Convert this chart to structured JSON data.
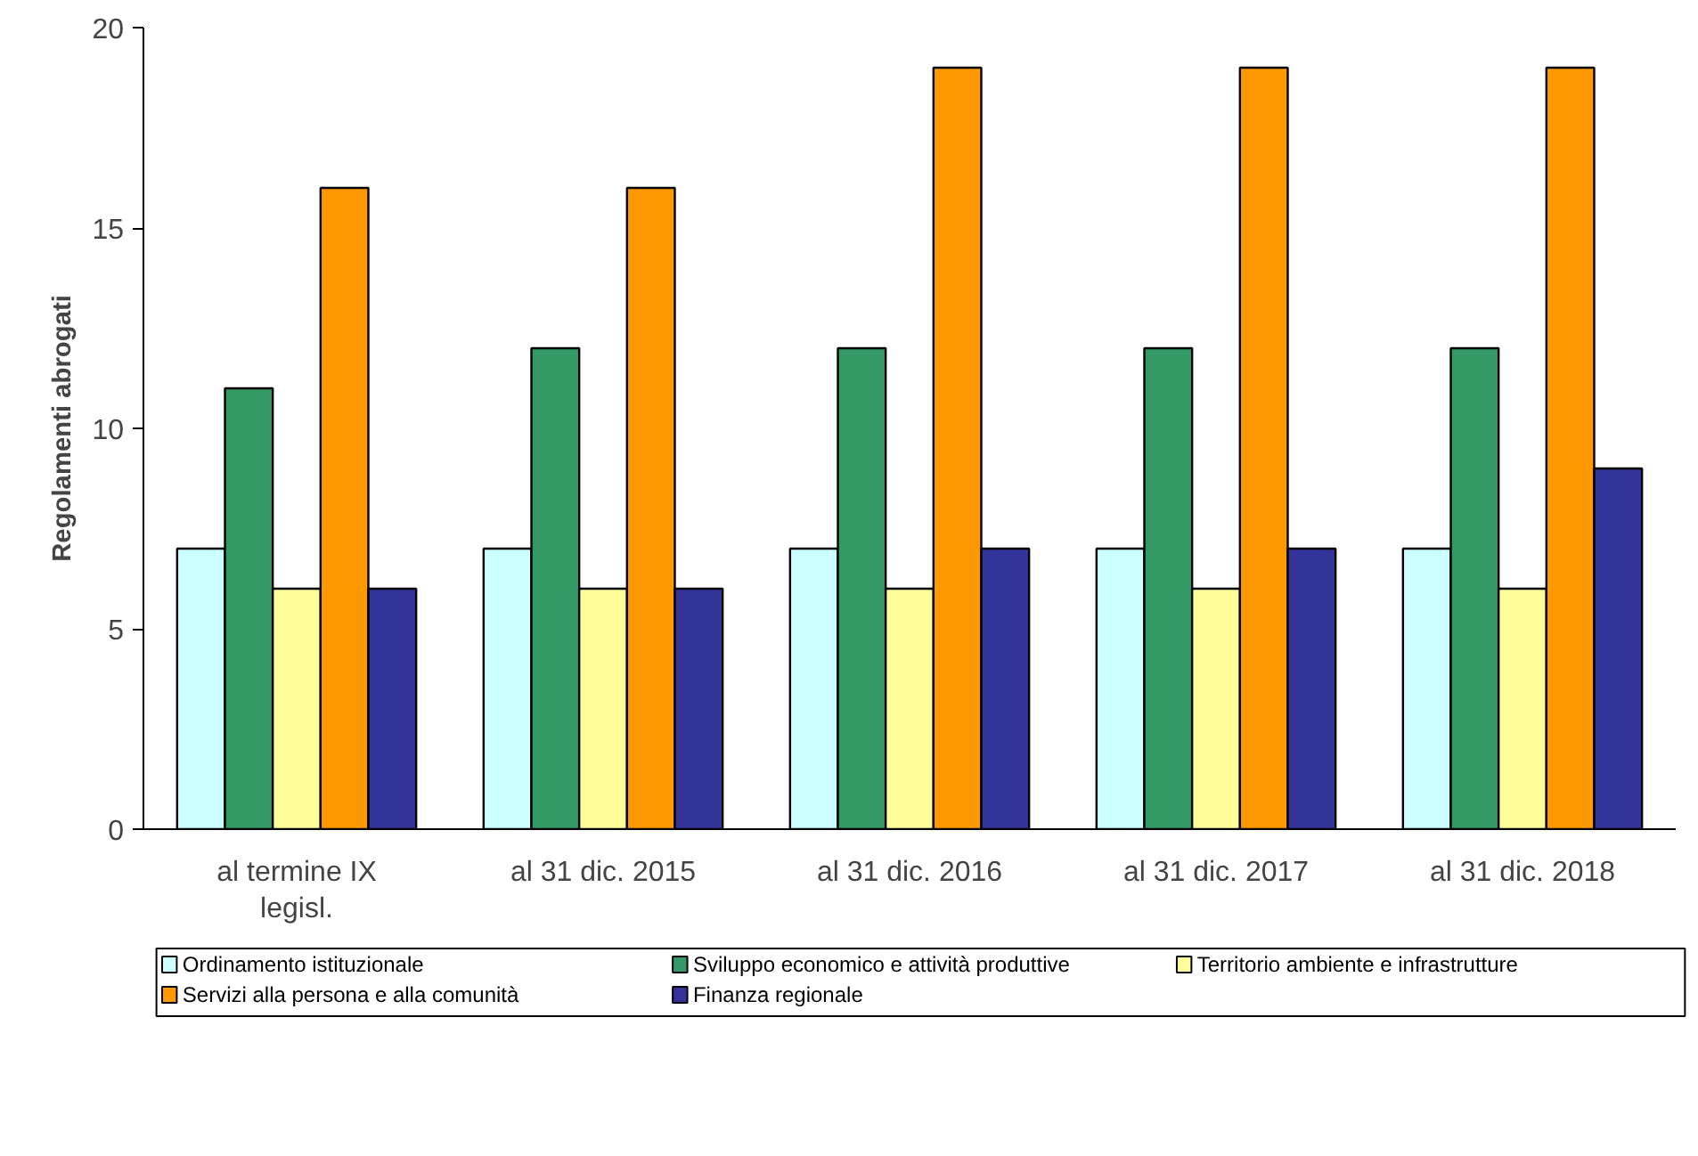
{
  "chart_data": {
    "type": "bar",
    "ylabel": "Regolamenti abrogati",
    "categories": [
      "al termine IX\nlegisl.",
      "al 31 dic. 2015",
      "al 31 dic. 2016",
      "al 31 dic. 2017",
      "al 31 dic. 2018"
    ],
    "series": [
      {
        "name": "Ordinamento istituzionale",
        "color": "#ccffff",
        "values": [
          7,
          7,
          7,
          7,
          7
        ]
      },
      {
        "name": "Sviluppo economico e attività produttive",
        "color": "#339966",
        "values": [
          11,
          12,
          12,
          12,
          12
        ]
      },
      {
        "name": "Territorio ambiente e infrastrutture",
        "color": "#ffff99",
        "values": [
          6,
          6,
          6,
          6,
          6
        ]
      },
      {
        "name": "Servizi alla persona e alla comunità",
        "color": "#ff9900",
        "values": [
          16,
          16,
          19,
          19,
          19
        ]
      },
      {
        "name": "Finanza regionale",
        "color": "#333399",
        "values": [
          6,
          6,
          7,
          7,
          9
        ]
      }
    ],
    "ylim": [
      0,
      20
    ],
    "yticks": [
      0,
      5,
      10,
      15,
      20
    ],
    "legend": "bottom"
  }
}
